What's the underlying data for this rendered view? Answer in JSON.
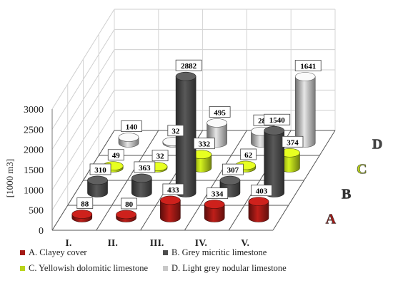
{
  "chart_data": {
    "type": "bar",
    "subtype": "3d-cylinder",
    "categories": [
      "I.",
      "II.",
      "III.",
      "IV.",
      "V."
    ],
    "ylabel": "[1000 m3]",
    "ylim": [
      0,
      3000
    ],
    "yticks": [
      "0",
      "500",
      "1000",
      "1500",
      "2000",
      "2500",
      "3000"
    ],
    "series": [
      {
        "name": "A. Clayey cover",
        "letter": "A",
        "color": "#a51a16",
        "values": [
          88,
          80,
          433,
          334,
          403
        ]
      },
      {
        "name": "B. Grey micritic limestone",
        "letter": "B",
        "color": "#4d4d4d",
        "values": [
          310,
          363,
          2882,
          307,
          1540
        ]
      },
      {
        "name": "C. Yellowish dolomitic limestone",
        "letter": "C",
        "color": "#b9d41a",
        "values": [
          49,
          32,
          332,
          62,
          374
        ]
      },
      {
        "name": "D. Light grey nodular limestone",
        "letter": "D",
        "color": "#c8c8c8",
        "values": [
          140,
          32,
          495,
          288,
          1641
        ]
      }
    ],
    "letter_colors": {
      "A": "#a51a16",
      "B": "#333333",
      "C": "#b9d41a",
      "D": "#444444"
    },
    "grid": true,
    "legend": "bottom"
  }
}
